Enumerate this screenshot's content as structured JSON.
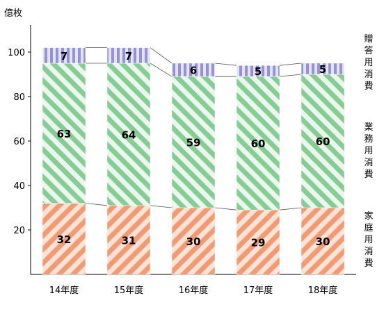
{
  "chart_data": {
    "type": "bar",
    "stacked": true,
    "unit_label": "億枚",
    "categories": [
      "14年度",
      "15年度",
      "16年度",
      "17年度",
      "18年度"
    ],
    "series": [
      {
        "name": "家庭用消費",
        "values": [
          32,
          31,
          30,
          29,
          30
        ],
        "color": "#f4a27c"
      },
      {
        "name": "業務用消費",
        "values": [
          63,
          64,
          59,
          60,
          60
        ],
        "color": "#8fd19a"
      },
      {
        "name": "贈答用消費",
        "values": [
          7,
          7,
          6,
          5,
          5
        ],
        "color": "#9e9ad8"
      }
    ],
    "y_ticks": [
      20,
      40,
      60,
      80,
      100
    ],
    "ylim": [
      0,
      110
    ],
    "grid": false,
    "connector_lines": true,
    "legend": "right, inline labels beside stacks"
  }
}
